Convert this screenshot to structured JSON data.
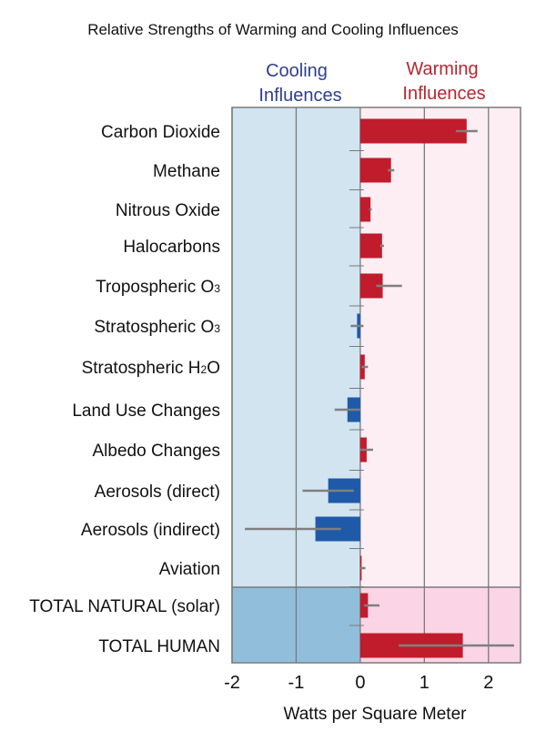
{
  "chart_data": {
    "type": "bar",
    "title": "Relative Strengths of Warming and Cooling Influences",
    "xlabel": "Watts per Square Meter",
    "ylabel": "",
    "xlim": [
      -2,
      2.5
    ],
    "xticks": [
      "-2",
      "-1",
      "0",
      "1",
      "2"
    ],
    "grid": true,
    "region_labels": {
      "cooling": [
        "Cooling",
        "Influences"
      ],
      "warming": [
        "Warming",
        "Influences"
      ]
    },
    "categories": [
      [
        "Carbon Dioxide"
      ],
      [
        "Methane"
      ],
      [
        "Nitrous Oxide"
      ],
      [
        "Halocarbons"
      ],
      [
        "Tropospheric O",
        "3"
      ],
      [
        "Stratospheric O",
        "3"
      ],
      [
        "Stratospheric H",
        "2",
        "O"
      ],
      [
        "Land Use Changes"
      ],
      [
        "Albedo Changes"
      ],
      [
        "Aerosols (direct)"
      ],
      [
        "Aerosols (indirect)"
      ],
      [
        "Aviation"
      ],
      [
        "TOTAL NATURAL  (solar)"
      ],
      [
        "TOTAL HUMAN"
      ]
    ],
    "values": [
      1.66,
      0.48,
      0.16,
      0.34,
      0.35,
      -0.05,
      0.07,
      -0.2,
      0.1,
      -0.5,
      -0.7,
      0.01,
      0.12,
      1.6
    ],
    "error_low": [
      1.49,
      0.43,
      0.14,
      0.31,
      0.25,
      -0.15,
      0.02,
      -0.4,
      0.0,
      -0.9,
      -1.8,
      0.003,
      0.06,
      0.6
    ],
    "error_high": [
      1.83,
      0.53,
      0.18,
      0.37,
      0.65,
      0.05,
      0.12,
      0.0,
      0.2,
      -0.1,
      -0.3,
      0.08,
      0.3,
      2.4
    ],
    "natural_group_start": 12,
    "colors": {
      "warming_bar": "#c01c2c",
      "cooling_bar": "#1f5aa8",
      "cooling_bg": "#d3e4f1",
      "warming_bg": "#fdeef4",
      "cooling_bg_total": "#91bfdb",
      "warming_bg_total": "#fbd5e5",
      "error_bar": "#7f7f7f",
      "grid": "#7a7a7a",
      "cooling_text": "#2e3f8f",
      "warming_text": "#b8252f"
    }
  }
}
